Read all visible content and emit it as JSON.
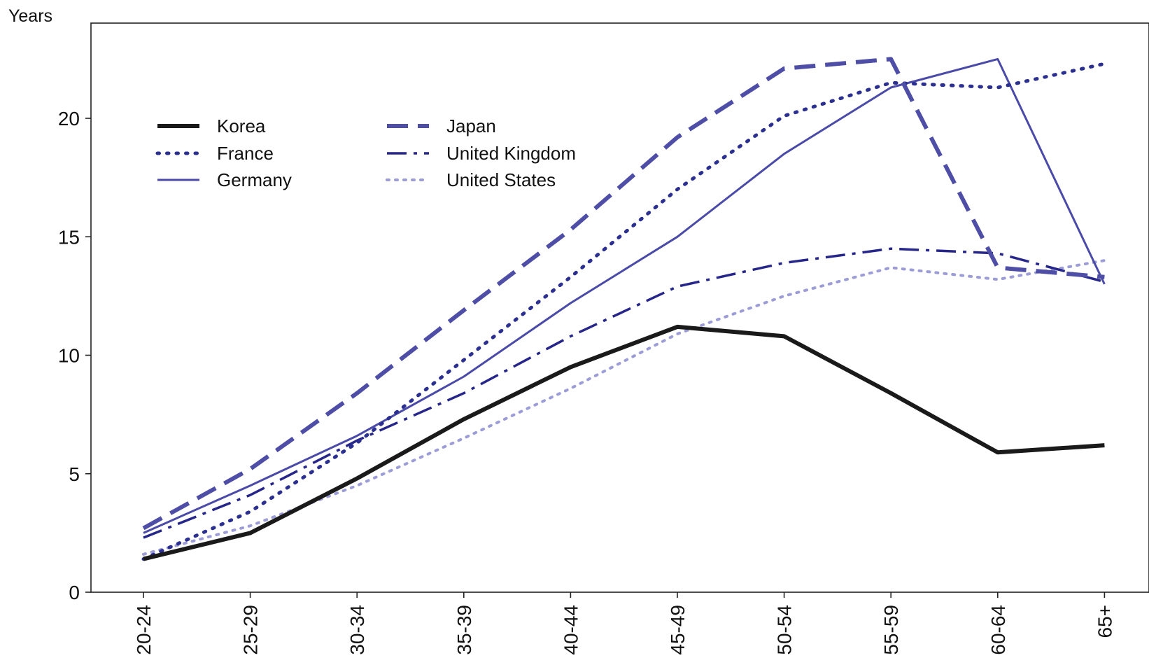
{
  "chart_data": {
    "type": "line",
    "title": "",
    "xlabel": "",
    "ylabel": "Years",
    "ylim": [
      0,
      24
    ],
    "yticks": [
      0,
      5,
      10,
      15,
      20
    ],
    "grid": false,
    "legend_position": "top-left",
    "categories": [
      "20-24",
      "25-29",
      "30-34",
      "35-39",
      "40-44",
      "45-49",
      "50-54",
      "55-59",
      "60-64",
      "65+"
    ],
    "series": [
      {
        "name": "Korea",
        "style": "solid-thick",
        "color": "#1a1a1a",
        "values": [
          1.4,
          2.5,
          4.8,
          7.3,
          9.5,
          11.2,
          10.8,
          8.4,
          5.9,
          6.2
        ]
      },
      {
        "name": "France",
        "style": "dotted",
        "color": "#2b2f8f",
        "values": [
          1.4,
          3.4,
          6.3,
          9.8,
          13.3,
          17.0,
          20.1,
          21.5,
          21.3,
          22.3
        ]
      },
      {
        "name": "Germany",
        "style": "solid",
        "color": "#4a4aa8",
        "values": [
          2.5,
          4.5,
          6.6,
          9.1,
          12.2,
          15.0,
          18.5,
          21.3,
          22.5,
          13.0
        ]
      },
      {
        "name": "Japan",
        "style": "dashed",
        "color": "#4e4ea6",
        "values": [
          2.7,
          5.2,
          8.4,
          11.9,
          15.3,
          19.2,
          22.1,
          22.5,
          13.7,
          13.3
        ]
      },
      {
        "name": "United Kingdom",
        "style": "dash-dot",
        "color": "#25258a",
        "values": [
          2.3,
          4.1,
          6.4,
          8.4,
          10.8,
          12.9,
          13.9,
          14.5,
          14.3,
          13.1
        ]
      },
      {
        "name": "United States",
        "style": "light-dotted",
        "color": "#9c9cd6",
        "values": [
          1.6,
          2.8,
          4.5,
          6.5,
          8.6,
          10.9,
          12.5,
          13.7,
          13.2,
          14.0
        ]
      }
    ]
  }
}
